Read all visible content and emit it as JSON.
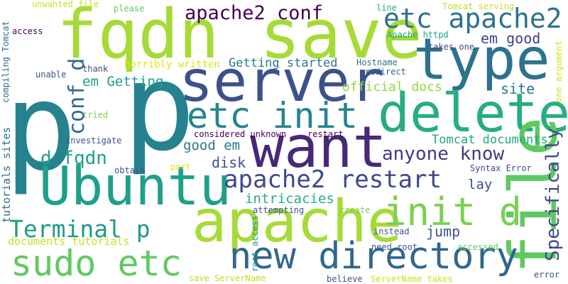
{
  "words": [
    {
      "text": "p",
      "weight": 100,
      "color": "#26828e",
      "vertical": false
    },
    {
      "text": "p",
      "weight": 99,
      "color": "#26828e",
      "vertical": false
    },
    {
      "text": "fqdn save",
      "weight": 70,
      "color": "#a5db36",
      "vertical": false
    },
    {
      "text": "server",
      "weight": 60,
      "color": "#3b518b",
      "vertical": false
    },
    {
      "text": "type",
      "weight": 59,
      "color": "#2c728e",
      "vertical": false
    },
    {
      "text": "want",
      "weight": 58,
      "color": "#482878",
      "vertical": false
    },
    {
      "text": "delete",
      "weight": 57,
      "color": "#27ad81",
      "vertical": false
    },
    {
      "text": "apache",
      "weight": 56,
      "color": "#a5db36",
      "vertical": false
    },
    {
      "text": "Ubuntu",
      "weight": 55,
      "color": "#1fa088",
      "vertical": false
    },
    {
      "text": "file",
      "weight": 52,
      "color": "#5ec962",
      "vertical": true
    },
    {
      "text": "etc init",
      "weight": 40,
      "color": "#25858e",
      "vertical": false
    },
    {
      "text": "new directory",
      "weight": 39,
      "color": "#30678d",
      "vertical": false
    },
    {
      "text": "sudo etc",
      "weight": 38,
      "color": "#5ec962",
      "vertical": false
    },
    {
      "text": "init d",
      "weight": 37,
      "color": "#7ad151",
      "vertical": false
    },
    {
      "text": "etc apache2",
      "weight": 31,
      "color": "#2c728e",
      "vertical": false
    },
    {
      "text": "apache2 restart",
      "weight": 28,
      "color": "#3e4989",
      "vertical": false
    },
    {
      "text": "Terminal p",
      "weight": 27,
      "color": "#1f9a8a",
      "vertical": false
    },
    {
      "text": "apache2 conf",
      "weight": 24,
      "color": "#440154",
      "vertical": false
    },
    {
      "text": "conf d",
      "weight": 24,
      "color": "#31688e",
      "vertical": true
    },
    {
      "text": "Specifically",
      "weight": 22,
      "color": "#3f4788",
      "vertical": true
    },
    {
      "text": "anyone know",
      "weight": 21,
      "color": "#443983",
      "vertical": false
    },
    {
      "text": "d fqdn",
      "weight": 20,
      "color": "#1fa188",
      "vertical": false
    },
    {
      "text": "em good",
      "weight": 17,
      "color": "#423f85",
      "vertical": false
    },
    {
      "text": "site",
      "weight": 17,
      "color": "#2c728e",
      "vertical": false
    },
    {
      "text": "em Getting",
      "weight": 16,
      "color": "#1f9f88",
      "vertical": false
    },
    {
      "text": "good em",
      "weight": 16,
      "color": "#2a788e",
      "vertical": false
    },
    {
      "text": "Getting started",
      "weight": 15,
      "color": "#2a788e",
      "vertical": false
    },
    {
      "text": "disk",
      "weight": 15,
      "color": "#3b528b",
      "vertical": false
    },
    {
      "text": "lay",
      "weight": 15,
      "color": "#3b528b",
      "vertical": false
    },
    {
      "text": "jump",
      "weight": 15,
      "color": "#3a548c",
      "vertical": false
    },
    {
      "text": "intricacies",
      "weight": 15,
      "color": "#28ae80",
      "vertical": false
    },
    {
      "text": "official docs",
      "weight": 14,
      "color": "#8fd744",
      "vertical": false
    },
    {
      "text": "Tomcat documents",
      "weight": 14,
      "color": "#21a685",
      "vertical": false
    },
    {
      "text": "documents tutorials",
      "weight": 12,
      "color": "#c8e020",
      "vertical": false
    },
    {
      "text": "tutorials sites",
      "weight": 11,
      "color": "#2d708e",
      "vertical": true
    },
    {
      "text": "horribly written",
      "weight": 11,
      "color": "#dde318",
      "vertical": false
    },
    {
      "text": "unwanted file",
      "weight": 10,
      "color": "#c8e020",
      "vertical": false
    },
    {
      "text": "please",
      "weight": 10,
      "color": "#5ec962",
      "vertical": false
    },
    {
      "text": "line",
      "weight": 10,
      "color": "#22a884",
      "vertical": false
    },
    {
      "text": "Tomcat serving",
      "weight": 10,
      "color": "#bddf26",
      "vertical": false
    },
    {
      "text": "compiling Tomcat",
      "weight": 10,
      "color": "#2e6e8e",
      "vertical": true
    },
    {
      "text": "access",
      "weight": 10,
      "color": "#440154",
      "vertical": false
    },
    {
      "text": "Apache httpd",
      "weight": 10,
      "color": "#1fa287",
      "vertical": false
    },
    {
      "text": "takes one",
      "weight": 10,
      "color": "#3e4989",
      "vertical": false
    },
    {
      "text": "unable",
      "weight": 10,
      "color": "#3b528b",
      "vertical": false
    },
    {
      "text": "thank",
      "weight": 10,
      "color": "#3e4989",
      "vertical": false
    },
    {
      "text": "Hostname",
      "weight": 10,
      "color": "#2c728e",
      "vertical": false
    },
    {
      "text": "redirect",
      "weight": 10,
      "color": "#34618d",
      "vertical": false
    },
    {
      "text": "one argument",
      "weight": 10,
      "color": "#d2e21b",
      "vertical": true
    },
    {
      "text": "tried",
      "weight": 10,
      "color": "#7ad151",
      "vertical": false
    },
    {
      "text": "considered unknown",
      "weight": 10,
      "color": "#440154",
      "vertical": false
    },
    {
      "text": "restart",
      "weight": 10,
      "color": "#440154",
      "vertical": false
    },
    {
      "text": "investigate",
      "weight": 10,
      "color": "#3b528b",
      "vertical": false
    },
    {
      "text": "obtain",
      "weight": 10,
      "color": "#3b528b",
      "vertical": false
    },
    {
      "text": "Syntax Error",
      "weight": 10,
      "color": "#3e4989",
      "vertical": false
    },
    {
      "text": "port",
      "weight": 10,
      "color": "#dde318",
      "vertical": false
    },
    {
      "text": "root access",
      "weight": 10,
      "color": "#20928c",
      "vertical": true
    },
    {
      "text": "attempting",
      "weight": 10,
      "color": "#3b528b",
      "vertical": false
    },
    {
      "text": "create",
      "weight": 10,
      "color": "#7ad151",
      "vertical": false
    },
    {
      "text": "instead",
      "weight": 10,
      "color": "#3b528b",
      "vertical": false
    },
    {
      "text": "need root",
      "weight": 10,
      "color": "#3b528b",
      "vertical": false
    },
    {
      "text": "accessed",
      "weight": 10,
      "color": "#5ec962",
      "vertical": false
    },
    {
      "text": "save ServerName",
      "weight": 10,
      "color": "#bddf26",
      "vertical": false
    },
    {
      "text": "believe",
      "weight": 10,
      "color": "#3b528b",
      "vertical": false
    },
    {
      "text": "ServerName takes",
      "weight": 10,
      "color": "#c8e020",
      "vertical": false
    },
    {
      "text": "error",
      "weight": 10,
      "color": "#3b528b",
      "vertical": false
    }
  ]
}
